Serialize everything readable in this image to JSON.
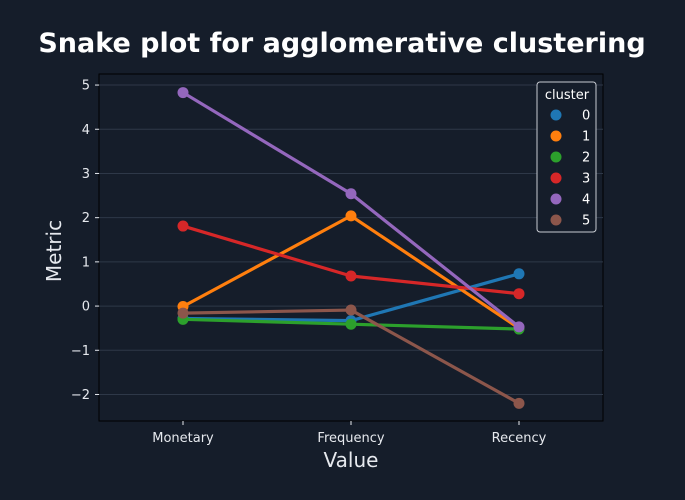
{
  "chart_data": {
    "type": "line",
    "title": "Snake plot for agglomerative clustering",
    "xlabel": "Value",
    "ylabel": "Metric",
    "categories": [
      "Monetary",
      "Frequency",
      "Recency"
    ],
    "ylim": [
      -2.6,
      5.25
    ],
    "yticks": [
      -2,
      -1,
      0,
      1,
      2,
      3,
      4,
      5
    ],
    "ytick_labels": [
      "−2",
      "−1",
      "0",
      "1",
      "2",
      "3",
      "4",
      "5"
    ],
    "grid": true,
    "legend": {
      "title": "cluster",
      "position": "top-right"
    },
    "series": [
      {
        "name": "0",
        "color": "#1f77b4",
        "values": [
          -0.28,
          -0.33,
          0.73
        ]
      },
      {
        "name": "1",
        "color": "#ff7f0e",
        "values": [
          -0.01,
          2.04,
          -0.5
        ]
      },
      {
        "name": "2",
        "color": "#2ca02c",
        "values": [
          -0.3,
          -0.41,
          -0.52
        ]
      },
      {
        "name": "3",
        "color": "#d62728",
        "values": [
          1.81,
          0.68,
          0.28
        ]
      },
      {
        "name": "4",
        "color": "#9467bd",
        "values": [
          4.83,
          2.54,
          -0.47
        ]
      },
      {
        "name": "5",
        "color": "#8c564b",
        "values": [
          -0.16,
          -0.09,
          -2.2
        ]
      }
    ]
  }
}
